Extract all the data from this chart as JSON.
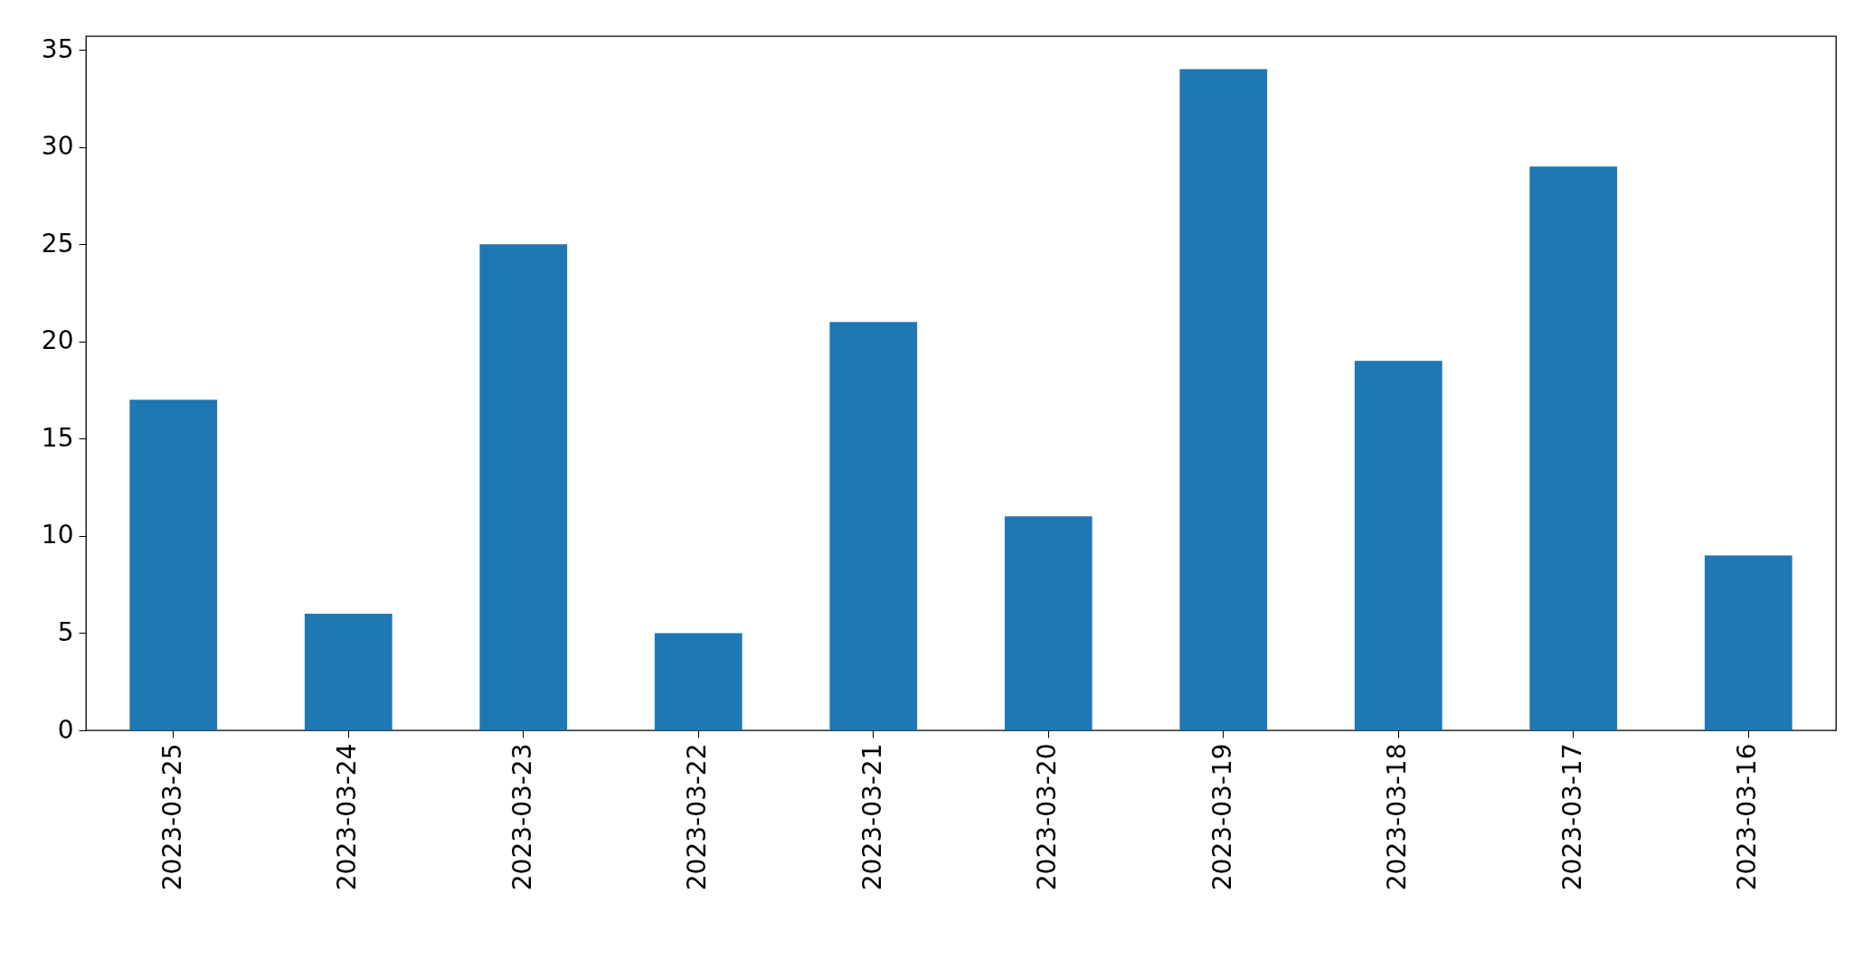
{
  "chart_data": {
    "type": "bar",
    "categories": [
      "2023-03-25",
      "2023-03-24",
      "2023-03-23",
      "2023-03-22",
      "2023-03-21",
      "2023-03-20",
      "2023-03-19",
      "2023-03-18",
      "2023-03-17",
      "2023-03-16"
    ],
    "values": [
      17,
      6,
      25,
      5,
      21,
      11,
      34,
      19,
      29,
      9
    ],
    "color": "#1f77b4",
    "ylim": [
      0,
      35.7
    ],
    "yticks": [
      0,
      5,
      10,
      15,
      20,
      25,
      30,
      35
    ],
    "grid": false
  }
}
